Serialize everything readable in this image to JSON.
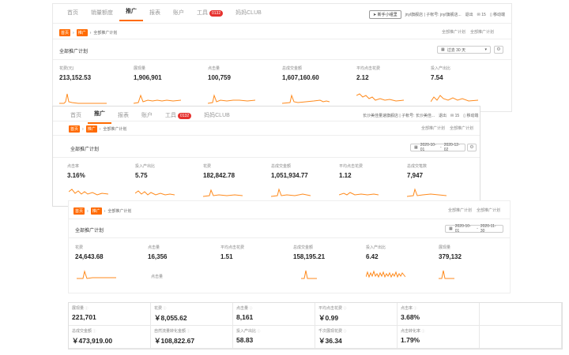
{
  "colors": {
    "accent": "#ff6a00",
    "badge": "#e6312e"
  },
  "panel1": {
    "nav": [
      {
        "label": "首页",
        "active": false
      },
      {
        "label": "销量额度",
        "active": false
      },
      {
        "label": "推广",
        "active": true
      },
      {
        "label": "报表",
        "active": false
      },
      {
        "label": "账户",
        "active": false
      },
      {
        "label": "工具",
        "active": false,
        "badge": "0132"
      },
      {
        "label": "妈妈CLUB",
        "active": false
      }
    ],
    "new_btn": "新手小组里",
    "user_text": "jnyl旗舰店 | 子帐号: jnyl旗舰店...",
    "logout": "退出",
    "msg_count": "15",
    "mobile": "移动端",
    "breadcrumb": [
      "首页",
      "推广",
      "全部推广计划"
    ],
    "links": [
      "全部推广计划",
      "全部推广计划"
    ],
    "title": "全部推广计划",
    "date": "过去 30 天",
    "metrics": [
      {
        "label": "花费(元)",
        "value": "213,152.53"
      },
      {
        "label": "展现量",
        "value": "1,906,901"
      },
      {
        "label": "点击量",
        "value": "100,759"
      },
      {
        "label": "总成交金额",
        "value": "1,607,160.60"
      },
      {
        "label": "平均点击花费",
        "value": "2.12"
      },
      {
        "label": "投入产出比",
        "value": "7.54"
      }
    ]
  },
  "panel2": {
    "nav": [
      {
        "label": "首页",
        "active": false
      },
      {
        "label": "推广",
        "active": true
      },
      {
        "label": "报表",
        "active": false
      },
      {
        "label": "账户",
        "active": false
      },
      {
        "label": "工具",
        "active": false,
        "badge": "0132"
      },
      {
        "label": "妈妈CLUB",
        "active": false
      }
    ],
    "user_text": "长沙美佳量速旗舰店 | 子帐号: 长沙美佳...",
    "logout": "退出",
    "msg_count": "15",
    "mobile": "移动端",
    "breadcrumb": [
      "首页",
      "推广",
      "全部推广计划"
    ],
    "links": [
      "全部推广计划",
      "全部推广计划"
    ],
    "title": "全部推广计划",
    "date_from": "2020-10-01",
    "date_to": "2020-12-02",
    "metrics": [
      {
        "label": "点击率",
        "value": "3.16%"
      },
      {
        "label": "投入产出比",
        "value": "5.75"
      },
      {
        "label": "花费",
        "value": "182,842.78"
      },
      {
        "label": "总成交金额",
        "value": "1,051,934.77"
      },
      {
        "label": "平均点击花费",
        "value": "1.12"
      },
      {
        "label": "总成交笔数",
        "value": "7,947"
      }
    ]
  },
  "panel3": {
    "breadcrumb": [
      "首页",
      "推广",
      "全部推广计划"
    ],
    "links": [
      "全部推广计划",
      "全部推广计划"
    ],
    "title": "全部推广计划",
    "date_from": "2020-10-01",
    "date_to": "2020-11-30",
    "metrics": [
      {
        "label": "花费",
        "value": "24,643.68"
      },
      {
        "label": "点击量",
        "value": "16,356"
      },
      {
        "label": "平均点击花费",
        "value": "1.51"
      },
      {
        "label": "总成交金额",
        "value": "158,195.21"
      },
      {
        "label": "投入产出比",
        "value": "6.42"
      },
      {
        "label": "展现量",
        "value": "379,132"
      }
    ],
    "extra_label": "点击量"
  },
  "table": [
    {
      "label": "展现量",
      "value": "221,701"
    },
    {
      "label": "花费",
      "value": "￥8,055.62"
    },
    {
      "label": "点击量",
      "value": "8,161"
    },
    {
      "label": "平均点击花费",
      "value": "￥0.99"
    },
    {
      "label": "点击率",
      "value": "3.68%"
    },
    {
      "label": "",
      "value": ""
    },
    {
      "label": "总成交金额",
      "value": "￥473,919.00"
    },
    {
      "label": "自然流量转化金额",
      "value": "￥108,822.67"
    },
    {
      "label": "投入产出比",
      "value": "58.83"
    },
    {
      "label": "千次展现花费",
      "value": "￥36.34"
    },
    {
      "label": "点击转化率",
      "value": "1.79%"
    },
    {
      "label": "",
      "value": ""
    }
  ]
}
